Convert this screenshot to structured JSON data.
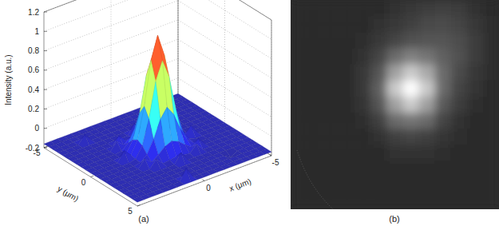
{
  "chart_data": [
    {
      "type": "surface",
      "title": "(a)",
      "xlabel": "x (μm)",
      "ylabel": "y (μm)",
      "zlabel": "Intensity (a.u.)",
      "x": [
        -5,
        -4.5,
        -4,
        -3.5,
        -3,
        -2.5,
        -2,
        -1.5,
        -1,
        -0.5,
        0,
        0.5,
        1,
        1.5,
        2,
        2.5,
        3,
        3.5,
        4,
        4.5,
        5
      ],
      "y": [
        -5,
        -4.5,
        -4,
        -3.5,
        -3,
        -2.5,
        -2,
        -1.5,
        -1,
        -0.5,
        0,
        0.5,
        1,
        1.5,
        2,
        2.5,
        3,
        3.5,
        4,
        4.5,
        5
      ],
      "z": [
        [
          -0.16,
          -0.16,
          -0.16,
          -0.16,
          -0.16,
          -0.16,
          -0.16,
          -0.16,
          -0.16,
          -0.16,
          -0.16,
          -0.16,
          -0.16,
          -0.16,
          -0.16,
          -0.16,
          -0.16,
          -0.16,
          -0.16,
          -0.16,
          -0.16
        ],
        [
          -0.16,
          -0.16,
          -0.16,
          -0.16,
          -0.16,
          -0.16,
          -0.16,
          -0.16,
          -0.16,
          -0.16,
          -0.16,
          -0.16,
          -0.16,
          -0.16,
          -0.16,
          -0.16,
          -0.16,
          -0.16,
          -0.16,
          -0.16,
          -0.16
        ],
        [
          -0.16,
          -0.16,
          -0.16,
          -0.16,
          -0.16,
          -0.16,
          -0.16,
          -0.16,
          -0.16,
          -0.16,
          -0.16,
          -0.16,
          -0.16,
          -0.16,
          -0.16,
          -0.16,
          -0.16,
          -0.16,
          -0.16,
          -0.16,
          -0.16
        ],
        [
          -0.16,
          -0.16,
          -0.16,
          -0.16,
          -0.16,
          -0.16,
          -0.16,
          -0.16,
          -0.16,
          -0.16,
          -0.16,
          -0.16,
          -0.16,
          -0.16,
          -0.16,
          -0.16,
          -0.08,
          -0.16,
          -0.16,
          -0.16,
          -0.16
        ],
        [
          -0.16,
          -0.16,
          -0.16,
          -0.16,
          -0.16,
          -0.16,
          -0.16,
          -0.16,
          -0.16,
          -0.16,
          -0.16,
          -0.16,
          -0.16,
          -0.16,
          -0.16,
          -0.16,
          -0.16,
          -0.16,
          -0.16,
          -0.16,
          -0.16
        ],
        [
          -0.16,
          -0.16,
          -0.16,
          -0.16,
          -0.16,
          -0.16,
          -0.16,
          -0.16,
          -0.16,
          -0.16,
          -0.06,
          -0.16,
          -0.16,
          -0.16,
          -0.16,
          -0.16,
          -0.16,
          -0.16,
          -0.16,
          -0.16,
          -0.16
        ],
        [
          -0.16,
          -0.16,
          -0.16,
          -0.16,
          -0.16,
          -0.16,
          -0.16,
          -0.08,
          -0.15,
          -0.14,
          -0.13,
          -0.14,
          -0.15,
          -0.08,
          -0.16,
          -0.16,
          -0.16,
          -0.16,
          -0.16,
          -0.16,
          -0.16
        ],
        [
          -0.16,
          -0.16,
          -0.16,
          -0.16,
          -0.16,
          -0.16,
          -0.08,
          -0.14,
          -0.09,
          -0.03,
          0,
          -0.03,
          -0.09,
          -0.14,
          -0.08,
          -0.16,
          -0.16,
          -0.16,
          -0.16,
          -0.16,
          -0.16
        ],
        [
          -0.16,
          -0.16,
          -0.16,
          -0.16,
          -0.16,
          -0.16,
          -0.15,
          -0.09,
          0.04,
          0.22,
          0.32,
          0.22,
          0.04,
          -0.09,
          -0.15,
          -0.16,
          -0.16,
          -0.16,
          -0.16,
          -0.16,
          -0.16
        ],
        [
          -0.16,
          -0.16,
          -0.16,
          -0.16,
          -0.16,
          -0.16,
          -0.14,
          -0.03,
          0.22,
          0.58,
          0.77,
          0.58,
          0.22,
          -0.03,
          -0.14,
          -0.16,
          -0.16,
          -0.16,
          -0.16,
          -0.16,
          -0.16
        ],
        [
          -0.16,
          -0.16,
          -0.16,
          -0.16,
          -0.16,
          -0.06,
          -0.13,
          0,
          0.32,
          0.77,
          1,
          0.77,
          0.32,
          0,
          -0.13,
          -0.06,
          -0.16,
          -0.16,
          -0.16,
          -0.16,
          -0.16
        ],
        [
          -0.16,
          -0.16,
          -0.16,
          -0.16,
          -0.16,
          -0.16,
          -0.14,
          -0.03,
          0.22,
          0.58,
          0.77,
          0.58,
          0.22,
          -0.03,
          -0.14,
          -0.16,
          -0.16,
          -0.16,
          -0.16,
          -0.16,
          -0.16
        ],
        [
          -0.16,
          -0.16,
          -0.16,
          -0.16,
          -0.16,
          -0.16,
          -0.15,
          -0.09,
          0.04,
          0.22,
          0.32,
          0.22,
          0.04,
          -0.09,
          -0.15,
          -0.16,
          -0.16,
          -0.16,
          -0.16,
          -0.16,
          -0.16
        ],
        [
          -0.16,
          -0.16,
          -0.16,
          -0.16,
          -0.16,
          -0.16,
          -0.08,
          -0.14,
          -0.09,
          -0.03,
          0,
          -0.03,
          -0.09,
          -0.14,
          -0.08,
          -0.16,
          -0.16,
          -0.16,
          -0.16,
          -0.16,
          -0.16
        ],
        [
          -0.16,
          -0.16,
          -0.16,
          -0.16,
          -0.16,
          -0.16,
          -0.16,
          -0.08,
          -0.15,
          -0.14,
          -0.13,
          -0.14,
          -0.15,
          -0.08,
          -0.16,
          -0.16,
          -0.16,
          -0.16,
          -0.16,
          -0.16,
          -0.16
        ],
        [
          -0.16,
          -0.16,
          -0.16,
          -0.16,
          -0.16,
          -0.16,
          -0.16,
          -0.16,
          -0.16,
          -0.16,
          -0.06,
          -0.16,
          -0.16,
          -0.16,
          -0.16,
          -0.16,
          -0.16,
          -0.16,
          -0.16,
          -0.16,
          -0.16
        ],
        [
          -0.16,
          -0.16,
          -0.16,
          -0.16,
          -0.16,
          -0.16,
          -0.16,
          -0.16,
          -0.16,
          -0.16,
          -0.16,
          -0.16,
          -0.16,
          -0.16,
          -0.16,
          -0.16,
          -0.16,
          -0.16,
          -0.16,
          -0.16,
          -0.16
        ],
        [
          -0.16,
          -0.16,
          -0.16,
          -0.16,
          -0.2,
          -0.16,
          -0.16,
          -0.16,
          -0.16,
          -0.16,
          -0.16,
          -0.16,
          -0.16,
          -0.16,
          -0.16,
          -0.16,
          -0.16,
          -0.16,
          -0.16,
          -0.16,
          -0.16
        ],
        [
          -0.16,
          -0.16,
          -0.16,
          -0.16,
          -0.16,
          -0.16,
          -0.16,
          -0.16,
          -0.16,
          -0.16,
          -0.16,
          -0.16,
          -0.16,
          -0.16,
          -0.16,
          -0.16,
          -0.16,
          -0.16,
          -0.16,
          -0.16,
          -0.16
        ],
        [
          -0.16,
          -0.16,
          -0.16,
          -0.16,
          -0.16,
          -0.16,
          -0.16,
          -0.16,
          -0.16,
          -0.16,
          -0.16,
          -0.16,
          -0.05,
          -0.16,
          -0.16,
          -0.16,
          -0.16,
          -0.16,
          -0.16,
          -0.16,
          -0.16
        ],
        [
          -0.16,
          -0.16,
          -0.16,
          -0.16,
          -0.16,
          -0.16,
          -0.16,
          -0.16,
          -0.16,
          -0.16,
          -0.16,
          -0.16,
          -0.16,
          -0.16,
          -0.16,
          -0.16,
          -0.16,
          -0.16,
          -0.16,
          -0.16,
          -0.16
        ]
      ],
      "xlim": [
        -5,
        5
      ],
      "ylim": [
        -5,
        5
      ],
      "zlim": [
        -0.2,
        1.2
      ],
      "xticks": [
        -5,
        0
      ],
      "yticks": [
        -5,
        0,
        5
      ],
      "zticks": [
        -0.2,
        0,
        0.2,
        0.4,
        0.6,
        0.8,
        1,
        1.2
      ],
      "grid": true
    },
    {
      "type": "image",
      "title": "(b)",
      "tick_labels": false,
      "cells": [
        [
          0,
          0,
          0,
          0,
          0,
          0,
          0.03,
          0.06,
          0.08,
          0.1,
          0.08,
          0.04,
          0
        ],
        [
          0,
          0,
          0,
          0,
          0,
          0.03,
          0.06,
          0.1,
          0.14,
          0.15,
          0.12,
          0.06,
          0.02
        ],
        [
          0,
          0,
          0,
          0,
          0.02,
          0.06,
          0.12,
          0.18,
          0.2,
          0.2,
          0.16,
          0.08,
          0.02
        ],
        [
          0,
          0,
          0,
          0,
          0.04,
          0.12,
          0.3,
          0.4,
          0.35,
          0.25,
          0.18,
          0.08,
          0.02
        ],
        [
          0,
          0,
          0,
          0,
          0.06,
          0.2,
          0.55,
          0.75,
          0.6,
          0.3,
          0.15,
          0.06,
          0.01
        ],
        [
          0,
          0,
          0,
          0,
          0.06,
          0.25,
          0.75,
          1,
          0.75,
          0.3,
          0.12,
          0.05,
          0
        ],
        [
          0,
          0,
          0,
          0,
          0.05,
          0.2,
          0.55,
          0.75,
          0.55,
          0.22,
          0.08,
          0.02,
          0
        ],
        [
          0,
          0,
          0,
          0,
          0.02,
          0.1,
          0.3,
          0.35,
          0.3,
          0.12,
          0.04,
          0,
          0
        ],
        [
          0,
          0,
          0,
          0,
          0,
          0.04,
          0.1,
          0.12,
          0.1,
          0.05,
          0.02,
          0,
          0
        ],
        [
          0,
          0,
          0,
          0,
          0,
          0,
          0.03,
          0.04,
          0.03,
          0.01,
          0,
          0,
          0
        ],
        [
          0,
          0,
          0,
          0,
          0,
          0,
          0,
          0,
          0,
          0,
          0,
          0,
          0
        ],
        [
          0,
          0,
          0,
          0,
          0,
          0,
          0,
          0,
          0,
          0,
          0,
          0,
          0
        ],
        [
          0,
          0,
          0,
          0,
          0,
          0,
          0,
          0,
          0,
          0,
          0,
          0,
          0
        ]
      ]
    }
  ]
}
